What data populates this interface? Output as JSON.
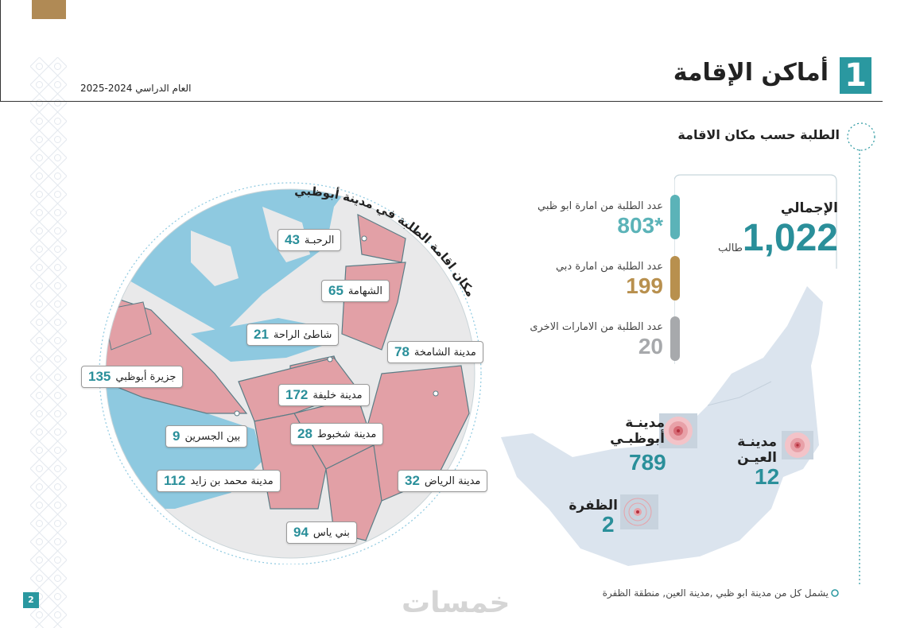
{
  "header": {
    "section_number": "1",
    "title": "أماكن الإقامة",
    "academic_year": "العام الدراسي 2024-2025"
  },
  "section_heading": "الطلبة حسب مكان الاقامة",
  "circle_map": {
    "arc_title": "مكان اقامة الطلبة في مدينة أبوظبي",
    "districts": [
      {
        "name": "الرحبـة",
        "value": "43"
      },
      {
        "name": "الشهامة",
        "value": "65"
      },
      {
        "name": "شاطئ الراحة",
        "value": "21"
      },
      {
        "name": "مدينة الشامخة",
        "value": "78"
      },
      {
        "name": "جزيرة أبوظبي",
        "value": "135"
      },
      {
        "name": "مدينة خليفة",
        "value": "172"
      },
      {
        "name": "مدينة شخبوط",
        "value": "28"
      },
      {
        "name": "بين الجسرين",
        "value": "9"
      },
      {
        "name": "مدينة الرياض",
        "value": "32"
      },
      {
        "name": "مدينة محمد بن زايد",
        "value": "112"
      },
      {
        "name": "بني ياس",
        "value": "94"
      }
    ]
  },
  "totals": {
    "label": "الإجمالي",
    "value": "1,022",
    "unit": "طالب",
    "stats": [
      {
        "label": "عدد الطلبة من امارة ابو ظبي",
        "value": "803*",
        "color": "#5bb3b8"
      },
      {
        "label": "عدد الطلبة من امارة دبي",
        "value": "199",
        "color": "#b8904e"
      },
      {
        "label": "عدد الطلبة من الامارات  الاخرى",
        "value": "20",
        "color": "#a7a9ac"
      }
    ]
  },
  "regions": [
    {
      "name": "مدينـة أبوظبـي",
      "value": "789"
    },
    {
      "name": "مدينـة العيـن",
      "value": "12"
    },
    {
      "name": "الظفرة",
      "value": "2"
    }
  ],
  "footnote": "يشمل كل من مدينة ابو ظبي ,مدينة العين, منطقة الظفرة",
  "page_number": "2",
  "watermark": "خمسات",
  "colors": {
    "accent": "#2a98a0",
    "gold": "#b08a55",
    "district_fill": "#e2a0a6",
    "sea": "#8ec9e0"
  }
}
